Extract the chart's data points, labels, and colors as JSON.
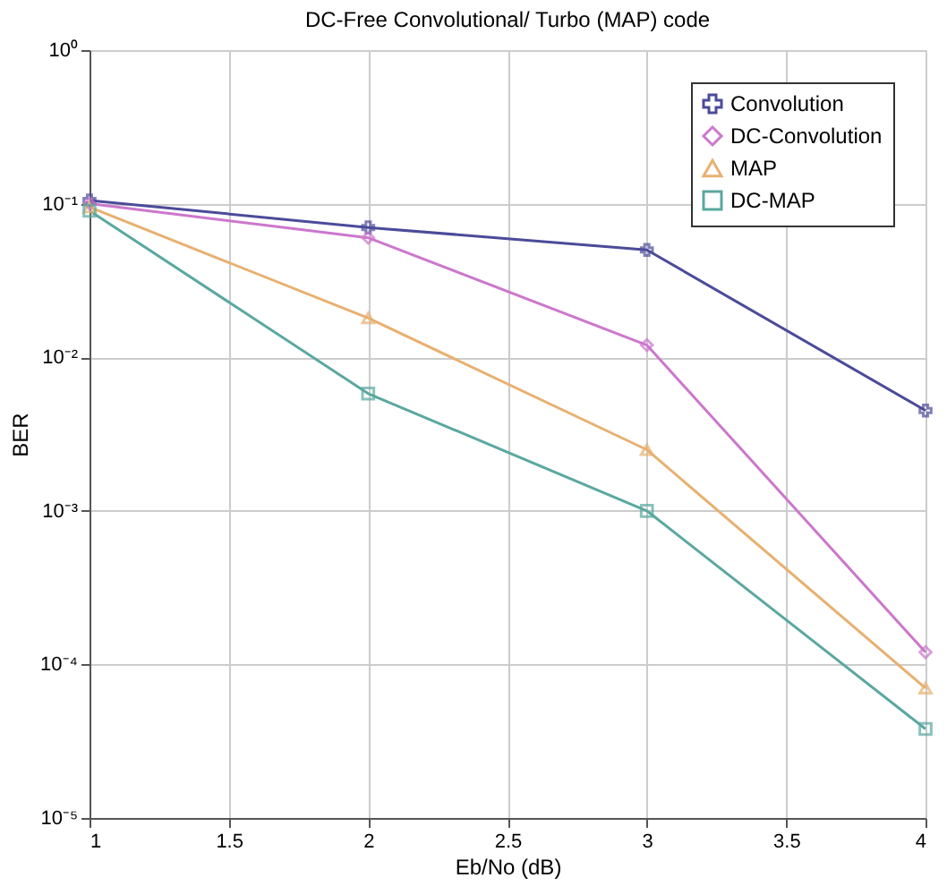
{
  "chart_data": {
    "type": "line",
    "title": "DC-Free Convolutional/ Turbo (MAP) code",
    "xlabel": "Eb/No (dB)",
    "ylabel": "BER",
    "x": [
      1,
      2,
      3,
      4
    ],
    "series": [
      {
        "name": "Convolution",
        "color": "#4b4b9a",
        "marker": "cross",
        "values": [
          0.105,
          0.07,
          0.05,
          0.0045
        ]
      },
      {
        "name": "DC-Convolution",
        "color": "#cc77cc",
        "marker": "diamond",
        "values": [
          0.1,
          0.06,
          0.012,
          0.00012
        ]
      },
      {
        "name": "MAP",
        "color": "#e8b070",
        "marker": "triangle",
        "values": [
          0.095,
          0.018,
          0.0025,
          7e-05
        ]
      },
      {
        "name": "DC-MAP",
        "color": "#5aa8a0",
        "marker": "square",
        "values": [
          0.09,
          0.0058,
          0.001,
          3.8e-05
        ]
      }
    ],
    "log": "y",
    "xlim": [
      1,
      4
    ],
    "xticks": [
      1,
      1.5,
      2,
      2.5,
      3,
      3.5,
      4
    ],
    "ylim": [
      1e-05,
      1
    ],
    "yticks": [
      {
        "value": 1e-05,
        "label": "10⁻⁵"
      },
      {
        "value": 0.0001,
        "label": "10⁻⁴"
      },
      {
        "value": 0.001,
        "label": "10⁻³"
      },
      {
        "value": 0.01,
        "label": "10⁻²"
      },
      {
        "value": 0.1,
        "label": "10⁻¹"
      },
      {
        "value": 1,
        "label": "10⁰"
      }
    ],
    "grid": true,
    "legend": "top right",
    "line_style": "solid"
  }
}
